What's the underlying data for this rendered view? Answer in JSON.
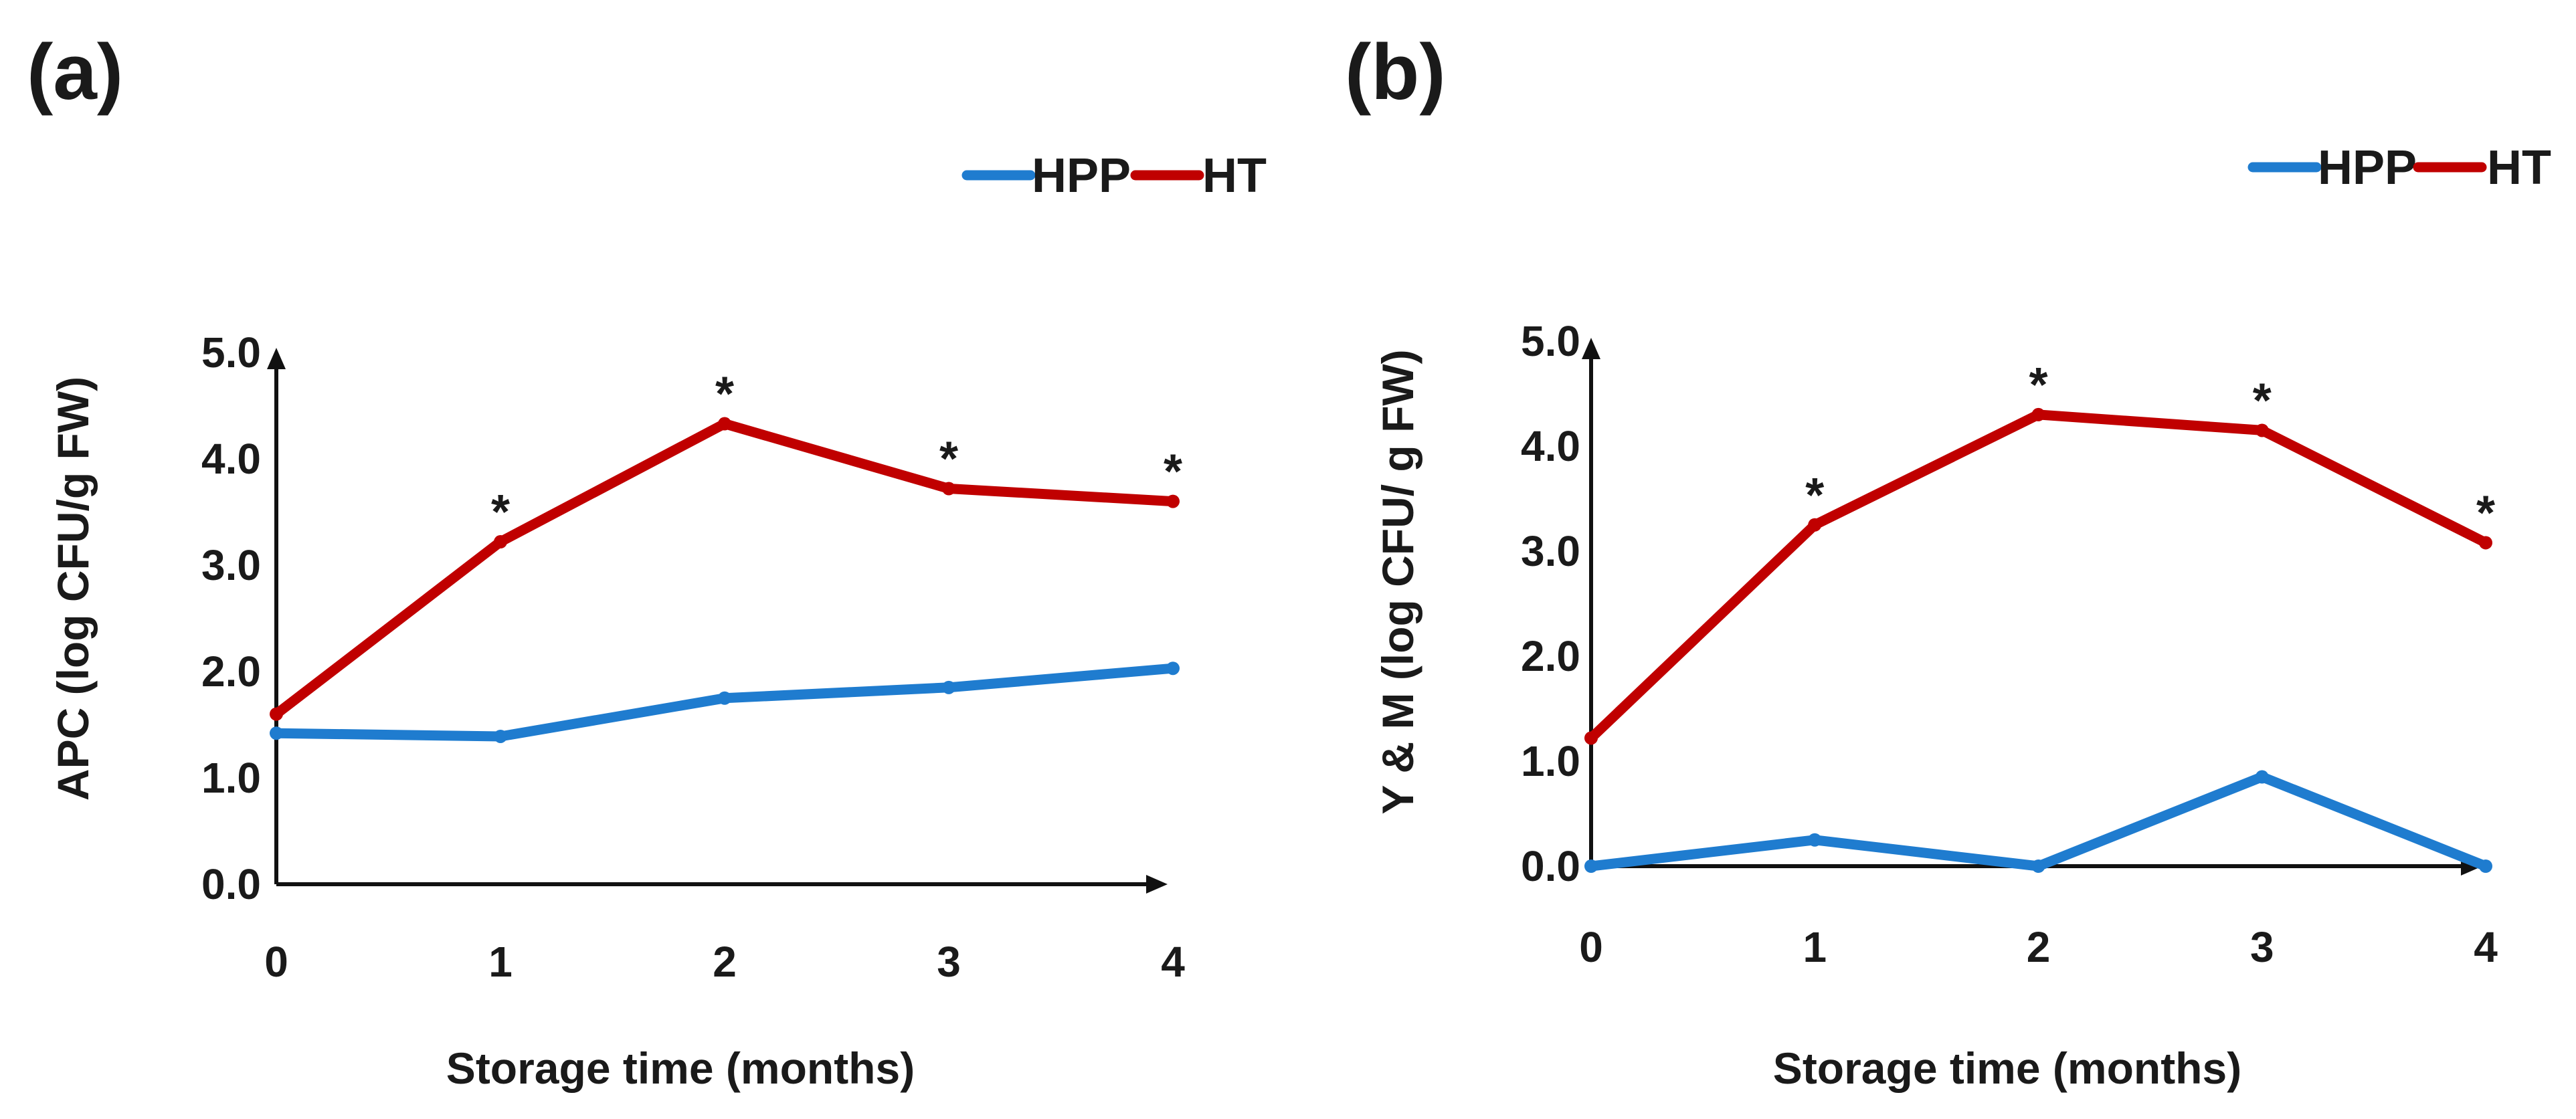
{
  "colors": {
    "HPP": "#1f7ccf",
    "HT": "#c00000",
    "axis": "#111111"
  },
  "chart_data": [
    {
      "type": "line",
      "panel_label": "(a)",
      "title": "",
      "xlabel": "Storage time (months)",
      "ylabel": "APC (log CFU/g FW)",
      "x": [
        0,
        1,
        2,
        3,
        4
      ],
      "xticks": [
        "0",
        "1",
        "2",
        "3",
        "4"
      ],
      "yticks": [
        "0.0",
        "1.0",
        "2.0",
        "3.0",
        "4.0",
        "5.0"
      ],
      "ylim": [
        0,
        5
      ],
      "legend": {
        "position": "top-right",
        "entries": [
          "HPP",
          "HT"
        ]
      },
      "series": [
        {
          "name": "HPP",
          "values": [
            1.42,
            1.39,
            1.75,
            1.85,
            2.03
          ]
        },
        {
          "name": "HT",
          "values": [
            1.6,
            3.22,
            4.33,
            3.72,
            3.6
          ]
        }
      ],
      "significance": {
        "marker": "*",
        "series": "HT",
        "x": [
          1,
          2,
          3,
          4
        ]
      }
    },
    {
      "type": "line",
      "panel_label": "(b)",
      "title": "",
      "xlabel": "Storage time (months)",
      "ylabel": "Y & M (log CFU/ g FW)",
      "x": [
        0,
        1,
        2,
        3,
        4
      ],
      "xticks": [
        "0",
        "1",
        "2",
        "3",
        "4"
      ],
      "yticks": [
        "0.0",
        "1.0",
        "2.0",
        "3.0",
        "4.0",
        "5.0"
      ],
      "ylim": [
        0,
        5
      ],
      "legend": {
        "position": "top-right",
        "entries": [
          "HPP",
          "HT"
        ]
      },
      "series": [
        {
          "name": "HPP",
          "values": [
            0.0,
            0.25,
            0.0,
            0.85,
            0.0
          ]
        },
        {
          "name": "HT",
          "values": [
            1.22,
            3.25,
            4.3,
            4.15,
            3.08
          ]
        }
      ],
      "significance": {
        "marker": "*",
        "series": "HT",
        "x": [
          1,
          2,
          3,
          4
        ]
      }
    }
  ]
}
